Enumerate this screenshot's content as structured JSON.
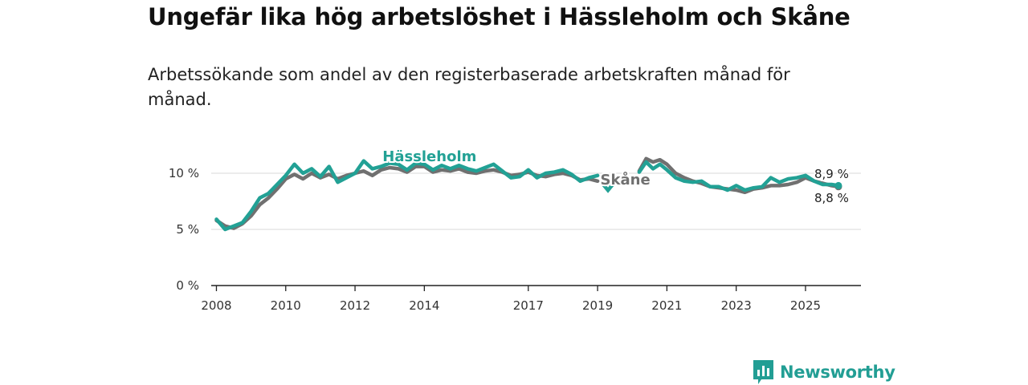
{
  "chart_data": {
    "type": "line",
    "title": "Ungefär lika hög arbetslöshet i Hässleholm och Skåne",
    "subtitle": "Arbetssökande som andel av den registerbaserade arbetskraften månad för månad.",
    "xlabel": "",
    "ylabel": "",
    "ylim": [
      0,
      12.5
    ],
    "xlim": [
      2007.85,
      2026.6
    ],
    "y_ticks": [
      0,
      5,
      10
    ],
    "y_tick_labels": [
      "0 %",
      "5 %",
      "10 %"
    ],
    "x_ticks": [
      2008,
      2010,
      2012,
      2014,
      2017,
      2019,
      2021,
      2023,
      2025
    ],
    "x_tick_labels": [
      "2008",
      "2010",
      "2012",
      "2014",
      "2017",
      "2019",
      "2021",
      "2023",
      "2025"
    ],
    "grid": true,
    "series": [
      {
        "name": "Skåne",
        "color": "#707070",
        "end_label": "8,8 %",
        "points": [
          [
            2008.0,
            5.8
          ],
          [
            2008.25,
            5.3
          ],
          [
            2008.5,
            5.1
          ],
          [
            2008.75,
            5.5
          ],
          [
            2009.0,
            6.2
          ],
          [
            2009.25,
            7.2
          ],
          [
            2009.5,
            7.8
          ],
          [
            2009.75,
            8.6
          ],
          [
            2010.0,
            9.5
          ],
          [
            2010.25,
            9.9
          ],
          [
            2010.5,
            9.5
          ],
          [
            2010.75,
            10.0
          ],
          [
            2011.0,
            9.6
          ],
          [
            2011.25,
            9.9
          ],
          [
            2011.5,
            9.5
          ],
          [
            2011.75,
            9.8
          ],
          [
            2012.0,
            10.0
          ],
          [
            2012.25,
            10.2
          ],
          [
            2012.5,
            9.8
          ],
          [
            2012.75,
            10.3
          ],
          [
            2013.0,
            10.5
          ],
          [
            2013.25,
            10.4
          ],
          [
            2013.5,
            10.1
          ],
          [
            2013.75,
            10.6
          ],
          [
            2014.0,
            10.6
          ],
          [
            2014.25,
            10.1
          ],
          [
            2014.5,
            10.3
          ],
          [
            2014.75,
            10.2
          ],
          [
            2015.0,
            10.4
          ],
          [
            2015.25,
            10.1
          ],
          [
            2015.5,
            10.0
          ],
          [
            2015.75,
            10.2
          ],
          [
            2016.0,
            10.3
          ],
          [
            2016.25,
            10.1
          ],
          [
            2016.5,
            9.8
          ],
          [
            2016.75,
            9.9
          ],
          [
            2017.0,
            10.1
          ],
          [
            2017.25,
            9.8
          ],
          [
            2017.5,
            9.7
          ],
          [
            2017.75,
            9.9
          ],
          [
            2018.0,
            10.0
          ],
          [
            2018.25,
            9.8
          ],
          [
            2018.5,
            9.4
          ],
          [
            2018.75,
            9.5
          ],
          [
            2019.0,
            9.3
          ],
          null,
          [
            2020.2,
            10.2
          ],
          [
            2020.4,
            11.3
          ],
          [
            2020.6,
            11.0
          ],
          [
            2020.8,
            11.2
          ],
          [
            2021.0,
            10.8
          ],
          [
            2021.25,
            10.0
          ],
          [
            2021.5,
            9.6
          ],
          [
            2021.75,
            9.3
          ],
          [
            2022.0,
            9.1
          ],
          [
            2022.25,
            8.8
          ],
          [
            2022.5,
            8.7
          ],
          [
            2022.75,
            8.6
          ],
          [
            2023.0,
            8.5
          ],
          [
            2023.25,
            8.3
          ],
          [
            2023.5,
            8.6
          ],
          [
            2023.75,
            8.7
          ],
          [
            2024.0,
            8.9
          ],
          [
            2024.25,
            8.9
          ],
          [
            2024.5,
            9.0
          ],
          [
            2024.75,
            9.2
          ],
          [
            2025.0,
            9.6
          ],
          [
            2025.25,
            9.3
          ],
          [
            2025.5,
            9.1
          ],
          [
            2025.75,
            8.9
          ],
          [
            2025.95,
            8.8
          ]
        ]
      },
      {
        "name": "Hässleholm",
        "color": "#22a195",
        "end_label": "8,9 %",
        "points": [
          [
            2008.0,
            5.9
          ],
          [
            2008.25,
            5.0
          ],
          [
            2008.5,
            5.3
          ],
          [
            2008.75,
            5.6
          ],
          [
            2009.0,
            6.6
          ],
          [
            2009.25,
            7.8
          ],
          [
            2009.5,
            8.2
          ],
          [
            2009.75,
            9.0
          ],
          [
            2010.0,
            9.8
          ],
          [
            2010.25,
            10.8
          ],
          [
            2010.5,
            10.0
          ],
          [
            2010.75,
            10.4
          ],
          [
            2011.0,
            9.7
          ],
          [
            2011.25,
            10.6
          ],
          [
            2011.5,
            9.2
          ],
          [
            2011.75,
            9.6
          ],
          [
            2012.0,
            10.0
          ],
          [
            2012.25,
            11.1
          ],
          [
            2012.5,
            10.4
          ],
          [
            2012.75,
            10.6
          ],
          [
            2013.0,
            10.9
          ],
          [
            2013.25,
            10.8
          ],
          [
            2013.5,
            10.3
          ],
          [
            2013.75,
            10.9
          ],
          [
            2014.0,
            10.8
          ],
          [
            2014.25,
            10.3
          ],
          [
            2014.5,
            10.7
          ],
          [
            2014.75,
            10.4
          ],
          [
            2015.0,
            10.7
          ],
          [
            2015.25,
            10.4
          ],
          [
            2015.5,
            10.2
          ],
          [
            2015.75,
            10.5
          ],
          [
            2016.0,
            10.8
          ],
          [
            2016.25,
            10.2
          ],
          [
            2016.5,
            9.6
          ],
          [
            2016.75,
            9.7
          ],
          [
            2017.0,
            10.3
          ],
          [
            2017.25,
            9.6
          ],
          [
            2017.5,
            10.0
          ],
          [
            2017.75,
            10.1
          ],
          [
            2018.0,
            10.3
          ],
          [
            2018.25,
            9.9
          ],
          [
            2018.5,
            9.3
          ],
          [
            2018.75,
            9.6
          ],
          [
            2019.0,
            9.8
          ],
          null,
          [
            2019.3,
            8.7
          ],
          null,
          [
            2020.2,
            10.1
          ],
          [
            2020.4,
            11.0
          ],
          [
            2020.6,
            10.4
          ],
          [
            2020.8,
            10.8
          ],
          [
            2021.0,
            10.3
          ],
          [
            2021.25,
            9.6
          ],
          [
            2021.5,
            9.3
          ],
          [
            2021.75,
            9.2
          ],
          [
            2022.0,
            9.3
          ],
          [
            2022.25,
            8.8
          ],
          [
            2022.5,
            8.8
          ],
          [
            2022.75,
            8.5
          ],
          [
            2023.0,
            8.9
          ],
          [
            2023.25,
            8.5
          ],
          [
            2023.5,
            8.7
          ],
          [
            2023.75,
            8.8
          ],
          [
            2024.0,
            9.6
          ],
          [
            2024.25,
            9.2
          ],
          [
            2024.5,
            9.5
          ],
          [
            2024.75,
            9.6
          ],
          [
            2025.0,
            9.8
          ],
          [
            2025.25,
            9.3
          ],
          [
            2025.5,
            9.0
          ],
          [
            2025.75,
            9.0
          ],
          [
            2025.95,
            8.9
          ]
        ]
      }
    ]
  },
  "brand": {
    "name": "Newsworthy",
    "icon": "newsworthy-chart-bubble-icon",
    "color": "#229e94"
  }
}
